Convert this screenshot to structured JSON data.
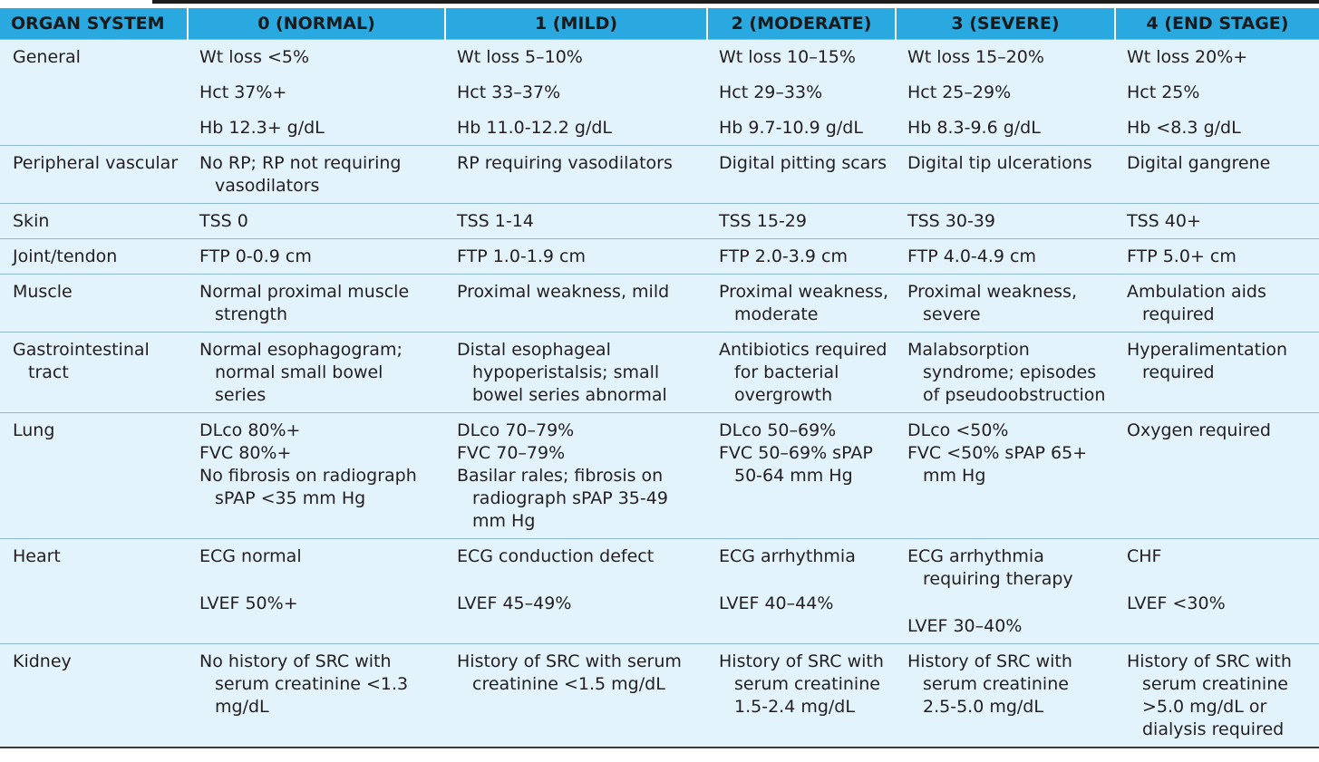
{
  "headers": [
    "ORGAN SYSTEM",
    "0 (NORMAL)",
    "1 (MILD)",
    "2 (MODERATE)",
    "3 (SEVERE)",
    "4 (END STAGE)"
  ],
  "rows": [
    {
      "organ": [
        "General"
      ],
      "cells": [
        [
          "Wt loss <5%",
          "Hct 37%+",
          "Hb 12.3+ g/dL"
        ],
        [
          "Wt loss 5–10%",
          "Hct 33–37%",
          "Hb 11.0-12.2 g/dL"
        ],
        [
          "Wt loss 10–15%",
          "Hct 29–33%",
          "Hb 9.7-10.9 g/dL"
        ],
        [
          "Wt loss 15–20%",
          "Hct 25–29%",
          "Hb 8.3-9.6 g/dL"
        ],
        [
          "Wt loss 20%+",
          "Hct 25%",
          "Hb <8.3 g/dL"
        ]
      ]
    },
    {
      "organ": [
        "Peripheral vascular"
      ],
      "cells": [
        [
          "No RP; RP not requiring vasodilators"
        ],
        [
          "RP requiring vasodilators"
        ],
        [
          "Digital pitting scars"
        ],
        [
          "Digital tip ulcerations"
        ],
        [
          "Digital gangrene"
        ]
      ]
    },
    {
      "organ": [
        "Skin"
      ],
      "cells": [
        [
          "TSS 0"
        ],
        [
          "TSS 1-14"
        ],
        [
          "TSS 15-29"
        ],
        [
          "TSS 30-39"
        ],
        [
          "TSS 40+"
        ]
      ]
    },
    {
      "organ": [
        "Joint/tendon"
      ],
      "cells": [
        [
          "FTP 0-0.9 cm"
        ],
        [
          "FTP 1.0-1.9 cm"
        ],
        [
          "FTP 2.0-3.9 cm"
        ],
        [
          "FTP 4.0-4.9 cm"
        ],
        [
          "FTP 5.0+ cm"
        ]
      ]
    },
    {
      "organ": [
        "Muscle"
      ],
      "cells": [
        [
          "Normal proximal muscle strength"
        ],
        [
          "Proximal weakness, mild"
        ],
        [
          "Proximal weakness, moderate"
        ],
        [
          "Proximal weakness, severe"
        ],
        [
          "Ambulation aids required"
        ]
      ]
    },
    {
      "organ": [
        "Gastrointestinal tract"
      ],
      "cells": [
        [
          "Normal esophagogram; normal small bowel series"
        ],
        [
          "Distal esophageal hypoperistalsis; small bowel series abnormal"
        ],
        [
          "Antibiotics required for bacterial overgrowth"
        ],
        [
          "Malabsorption syndrome; episodes of pseudoobstruction"
        ],
        [
          "Hyperalimentation required"
        ]
      ]
    },
    {
      "organ": [
        "Lung"
      ],
      "cells": [
        [
          "DLco 80%+",
          "FVC 80%+",
          "No fibrosis on radiograph sPAP <35 mm Hg"
        ],
        [
          "DLco 70–79%",
          "FVC 70–79%",
          "Basilar rales; fibrosis on radiograph sPAP 35-49 mm Hg"
        ],
        [
          "DLco 50–69%",
          "FVC 50–69% sPAP 50-64 mm Hg"
        ],
        [
          "DLco <50%",
          "FVC <50% sPAP 65+ mm Hg"
        ],
        [
          "Oxygen required"
        ]
      ]
    },
    {
      "organ": [
        "Heart"
      ],
      "cells": [
        [
          "ECG normal",
          "LVEF 50%+"
        ],
        [
          "ECG conduction defect",
          "LVEF 45–49%"
        ],
        [
          "ECG arrhythmia",
          "LVEF 40–44%"
        ],
        [
          "ECG arrhythmia requiring therapy",
          "LVEF 30–40%"
        ],
        [
          "CHF",
          "LVEF <30%"
        ]
      ]
    },
    {
      "organ": [
        "Kidney"
      ],
      "cells": [
        [
          "No history of SRC with serum creatinine <1.3 mg/dL"
        ],
        [
          "History of SRC with serum creatinine <1.5 mg/dL"
        ],
        [
          "History of SRC with serum creatinine 1.5-2.4 mg/dL"
        ],
        [
          "History of SRC with serum creatinine 2.5-5.0 mg/dL"
        ],
        [
          "History of SRC with serum creatinine >5.0 mg/dL or dialysis required"
        ]
      ]
    }
  ],
  "colors": {
    "header_bg": "#2aa8e0",
    "body_bg": "#e3f3fb",
    "rule": "#8fb9cc"
  }
}
